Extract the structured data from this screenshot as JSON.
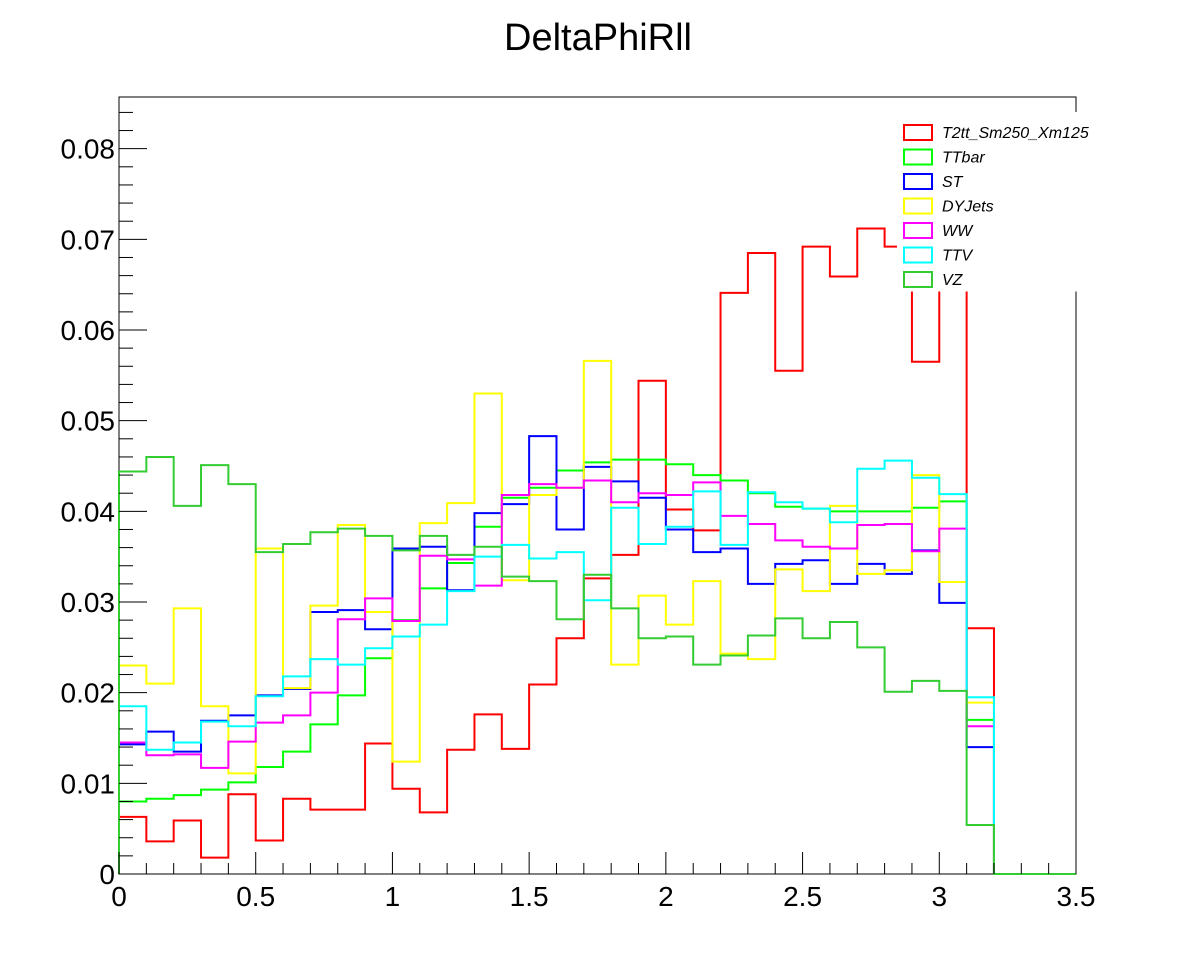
{
  "chart_data": {
    "type": "histogram",
    "title": "DeltaPhiRll",
    "xlabel": "",
    "ylabel": "",
    "xlim": [
      0,
      3.5
    ],
    "ylim": [
      0,
      0.0857
    ],
    "bin_width": 0.1,
    "grid": false,
    "legend_placement": "top-right",
    "x_ticks": [
      {
        "value": 0,
        "label": "0"
      },
      {
        "value": 0.5,
        "label": "0.5"
      },
      {
        "value": 1,
        "label": "1"
      },
      {
        "value": 1.5,
        "label": "1.5"
      },
      {
        "value": 2,
        "label": "2"
      },
      {
        "value": 2.5,
        "label": "2.5"
      },
      {
        "value": 3,
        "label": "3"
      },
      {
        "value": 3.5,
        "label": "3.5"
      }
    ],
    "y_ticks": [
      {
        "value": 0,
        "label": "0"
      },
      {
        "value": 0.01,
        "label": "0.01"
      },
      {
        "value": 0.02,
        "label": "0.02"
      },
      {
        "value": 0.03,
        "label": "0.03"
      },
      {
        "value": 0.04,
        "label": "0.04"
      },
      {
        "value": 0.05,
        "label": "0.05"
      },
      {
        "value": 0.06,
        "label": "0.06"
      },
      {
        "value": 0.07,
        "label": "0.07"
      },
      {
        "value": 0.08,
        "label": "0.08"
      }
    ],
    "series": [
      {
        "name": "T2tt_Sm250_Xm125",
        "color": "#ff0000",
        "values": [
          0.0063,
          0.0036,
          0.0059,
          0.0018,
          0.0088,
          0.0037,
          0.0083,
          0.0071,
          0.0071,
          0.0144,
          0.0094,
          0.0068,
          0.0137,
          0.0176,
          0.0138,
          0.0209,
          0.026,
          0.0326,
          0.0352,
          0.0544,
          0.0402,
          0.0379,
          0.0641,
          0.0685,
          0.0555,
          0.0692,
          0.0659,
          0.0712,
          0.0692,
          0.0565,
          0.078,
          0.0271,
          0,
          0,
          0
        ]
      },
      {
        "name": "TTbar",
        "color": "#00ff00",
        "values": [
          0.008,
          0.0083,
          0.0087,
          0.0093,
          0.0101,
          0.0118,
          0.0135,
          0.0165,
          0.0197,
          0.0238,
          0.028,
          0.0315,
          0.0343,
          0.0383,
          0.0415,
          0.0426,
          0.0445,
          0.0454,
          0.0457,
          0.0457,
          0.0452,
          0.044,
          0.0434,
          0.042,
          0.0405,
          0.0403,
          0.04,
          0.04,
          0.04,
          0.0404,
          0.0411,
          0.017,
          0,
          0,
          0
        ]
      },
      {
        "name": "ST",
        "color": "#0000ff",
        "values": [
          0.0143,
          0.0157,
          0.0135,
          0.0169,
          0.0175,
          0.0197,
          0.0204,
          0.0289,
          0.0291,
          0.027,
          0.0359,
          0.0361,
          0.0313,
          0.0398,
          0.0408,
          0.0483,
          0.038,
          0.0449,
          0.0433,
          0.0415,
          0.038,
          0.0355,
          0.0359,
          0.032,
          0.0342,
          0.0346,
          0.032,
          0.0342,
          0.0331,
          0.0357,
          0.0299,
          0.014,
          0,
          0,
          0
        ]
      },
      {
        "name": "DYJets",
        "color": "#ffff00",
        "values": [
          0.023,
          0.021,
          0.0293,
          0.0185,
          0.0111,
          0.0359,
          0.0205,
          0.0296,
          0.0385,
          0.0289,
          0.0124,
          0.0387,
          0.0409,
          0.053,
          0.0324,
          0.0418,
          0.0426,
          0.0566,
          0.0231,
          0.0307,
          0.0275,
          0.0323,
          0.0243,
          0.0237,
          0.0336,
          0.0312,
          0.0406,
          0.0331,
          0.0335,
          0.044,
          0.0322,
          0.0189,
          0,
          0,
          0
        ]
      },
      {
        "name": "WW",
        "color": "#ff00ff",
        "values": [
          0.0145,
          0.0131,
          0.0132,
          0.0117,
          0.0146,
          0.0167,
          0.0175,
          0.02,
          0.0281,
          0.0304,
          0.0279,
          0.0351,
          0.0347,
          0.0318,
          0.0418,
          0.043,
          0.0426,
          0.0434,
          0.041,
          0.042,
          0.0418,
          0.0432,
          0.0395,
          0.0386,
          0.0368,
          0.0361,
          0.0359,
          0.0385,
          0.0386,
          0.0356,
          0.0381,
          0.0163,
          0,
          0,
          0
        ]
      },
      {
        "name": "TTV",
        "color": "#00ffff",
        "values": [
          0.0185,
          0.0137,
          0.0145,
          0.0168,
          0.0163,
          0.0196,
          0.0218,
          0.0237,
          0.0231,
          0.0249,
          0.0262,
          0.0275,
          0.0312,
          0.035,
          0.0363,
          0.0348,
          0.0355,
          0.0302,
          0.0404,
          0.0364,
          0.0383,
          0.0422,
          0.0363,
          0.0421,
          0.041,
          0.0403,
          0.0388,
          0.0447,
          0.0456,
          0.0437,
          0.0419,
          0.0195,
          0,
          0,
          0
        ]
      },
      {
        "name": "VZ",
        "color": "#33cc33",
        "values": [
          0.0444,
          0.046,
          0.0406,
          0.0451,
          0.043,
          0.0355,
          0.0364,
          0.0377,
          0.0381,
          0.0373,
          0.0357,
          0.0373,
          0.0352,
          0.0361,
          0.0328,
          0.0323,
          0.0281,
          0.033,
          0.0293,
          0.026,
          0.0262,
          0.0231,
          0.0241,
          0.0263,
          0.0282,
          0.026,
          0.0278,
          0.025,
          0.0201,
          0.0213,
          0.0202,
          0.0054,
          0,
          0,
          0
        ]
      }
    ]
  }
}
